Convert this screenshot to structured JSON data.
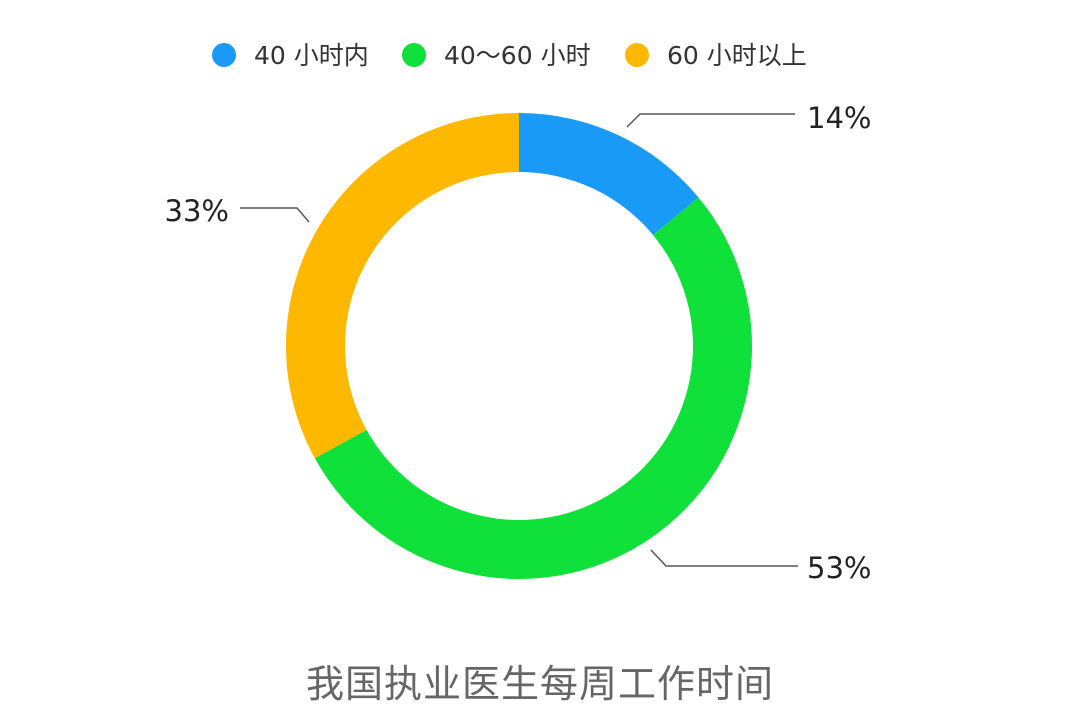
{
  "chart_data": {
    "type": "pie",
    "variant": "donut",
    "title": "",
    "caption": "我国执业医生每周工作时间",
    "legend_position": "top",
    "series": [
      {
        "name": "40 小时内",
        "value": 14,
        "label": "14%",
        "color": "#1a9af7"
      },
      {
        "name": "40～60 小时",
        "value": 53,
        "label": "53%",
        "color": "#0fe03a"
      },
      {
        "name": "60 小时以上",
        "value": 33,
        "label": "33%",
        "color": "#ffb800"
      }
    ]
  }
}
